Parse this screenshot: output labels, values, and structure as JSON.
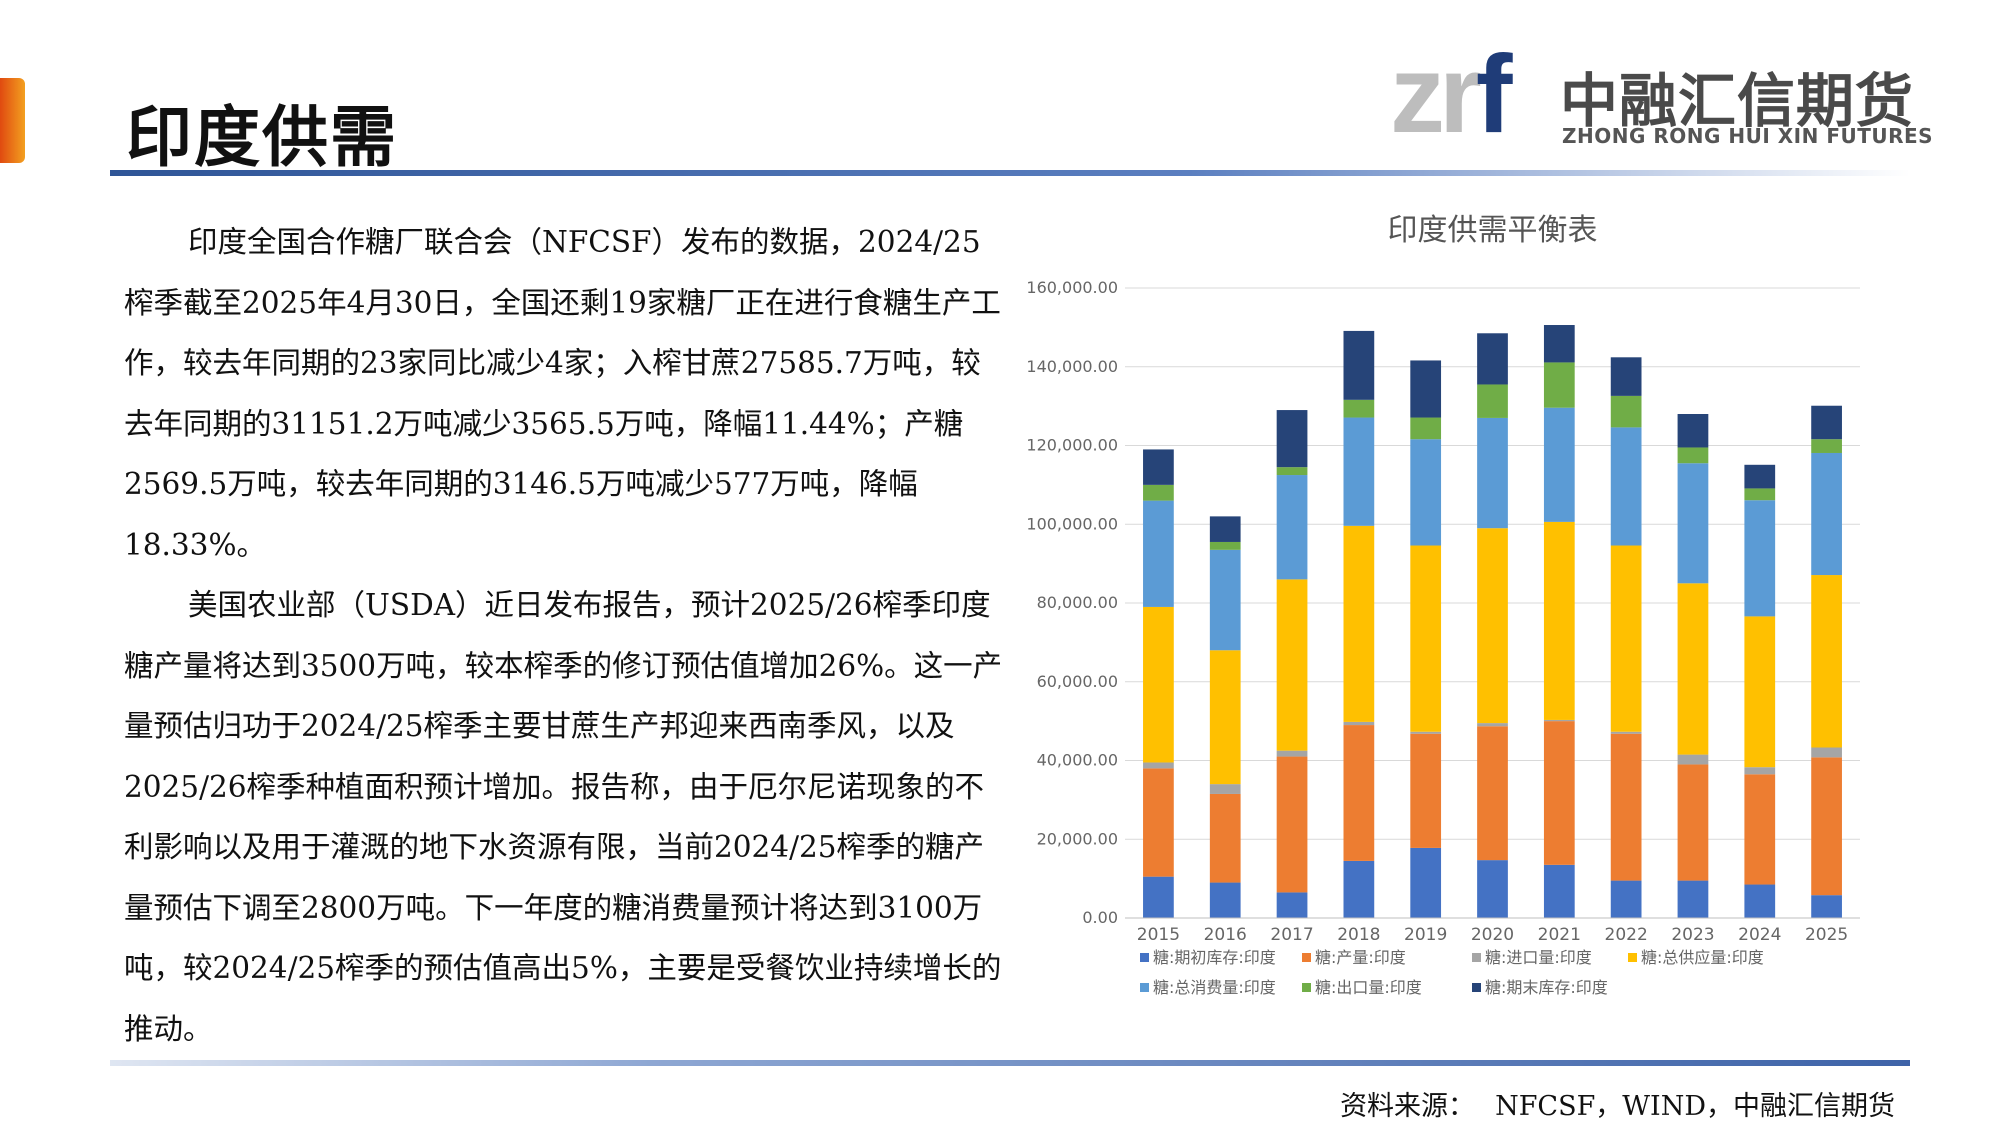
{
  "page": {
    "title": "印度供需",
    "source_label": "资料来源：",
    "source_value": "NFCSF，WIND，中融汇信期货"
  },
  "logo": {
    "mark_zr": "zr",
    "mark_f": "f",
    "cn": "中融汇信期货",
    "en": "ZHONG RONG HUI XIN FUTURES"
  },
  "body": {
    "paragraphs": [
      "印度全国合作糖厂联合会（NFCSF）发布的数据，2024/25榨季截至2025年4月30日，全国还剩19家糖厂正在进行食糖生产工作，较去年同期的23家同比减少4家；入榨甘蔗27585.7万吨，较去年同期的31151.2万吨减少3565.5万吨，降幅11.44%；产糖2569.5万吨，较去年同期的3146.5万吨减少577万吨，降幅18.33%。",
      "美国农业部（USDA）近日发布报告，预计2025/26榨季印度糖产量将达到3500万吨，较本榨季的修订预估值增加26%。这一产量预估归功于2024/25榨季主要甘蔗生产邦迎来西南季风，以及2025/26榨季种植面积预计增加。报告称，由于厄尔尼诺现象的不利影响以及用于灌溉的地下水资源有限，当前2024/25榨季的糖产量预估下调至2800万吨。下一年度的糖消费量预计将达到3100万吨，较2024/25榨季的预估值高出5%，主要是受餐饮业持续增长的推动。"
    ]
  },
  "chart_data": {
    "type": "bar",
    "stacked": true,
    "title": "印度供需平衡表",
    "xlabel": "",
    "ylabel": "",
    "ylim": [
      0,
      160000
    ],
    "yticks": [
      0,
      20000,
      40000,
      60000,
      80000,
      100000,
      120000,
      140000,
      160000
    ],
    "ytick_labels": [
      "0.00",
      "20,000.00",
      "40,000.00",
      "60,000.00",
      "80,000.00",
      "100,000.00",
      "120,000.00",
      "140,000.00",
      "160,000.00"
    ],
    "grid": true,
    "legend_position": "bottom",
    "categories": [
      "2015",
      "2016",
      "2017",
      "2018",
      "2019",
      "2020",
      "2021",
      "2022",
      "2023",
      "2024",
      "2025"
    ],
    "series": [
      {
        "name": "糖:期初库存:印度",
        "color": "#4472c4",
        "values": [
          10500,
          9000,
          6500,
          14500,
          17800,
          14700,
          13500,
          9500,
          9500,
          8500,
          5800
        ]
      },
      {
        "name": "糖:产量:印度",
        "color": "#ed7d31",
        "values": [
          27500,
          22500,
          34500,
          34500,
          29000,
          34000,
          36500,
          37300,
          29500,
          28000,
          35000
        ]
      },
      {
        "name": "糖:进口量:印度",
        "color": "#a5a5a5",
        "values": [
          1500,
          2500,
          1500,
          800,
          500,
          800,
          300,
          500,
          2500,
          1800,
          2500
        ]
      },
      {
        "name": "糖:总供应量:印度",
        "color": "#ffc000",
        "values": [
          39500,
          34000,
          43500,
          49800,
          47300,
          49500,
          50300,
          47300,
          43500,
          38300,
          43800
        ]
      },
      {
        "name": "糖:总消费量:印度",
        "color": "#5b9bd5",
        "values": [
          27000,
          25500,
          26500,
          27500,
          27000,
          28000,
          29000,
          30000,
          30500,
          29500,
          31000
        ]
      },
      {
        "name": "糖:出口量:印度",
        "color": "#70ad47",
        "values": [
          4000,
          2000,
          2000,
          4500,
          5500,
          8500,
          11500,
          8000,
          4000,
          3000,
          3500
        ]
      },
      {
        "name": "糖:期末库存:印度",
        "color": "#264478",
        "values": [
          9000,
          6500,
          14500,
          17500,
          14500,
          13000,
          9500,
          9800,
          8500,
          6000,
          8500
        ]
      }
    ]
  }
}
